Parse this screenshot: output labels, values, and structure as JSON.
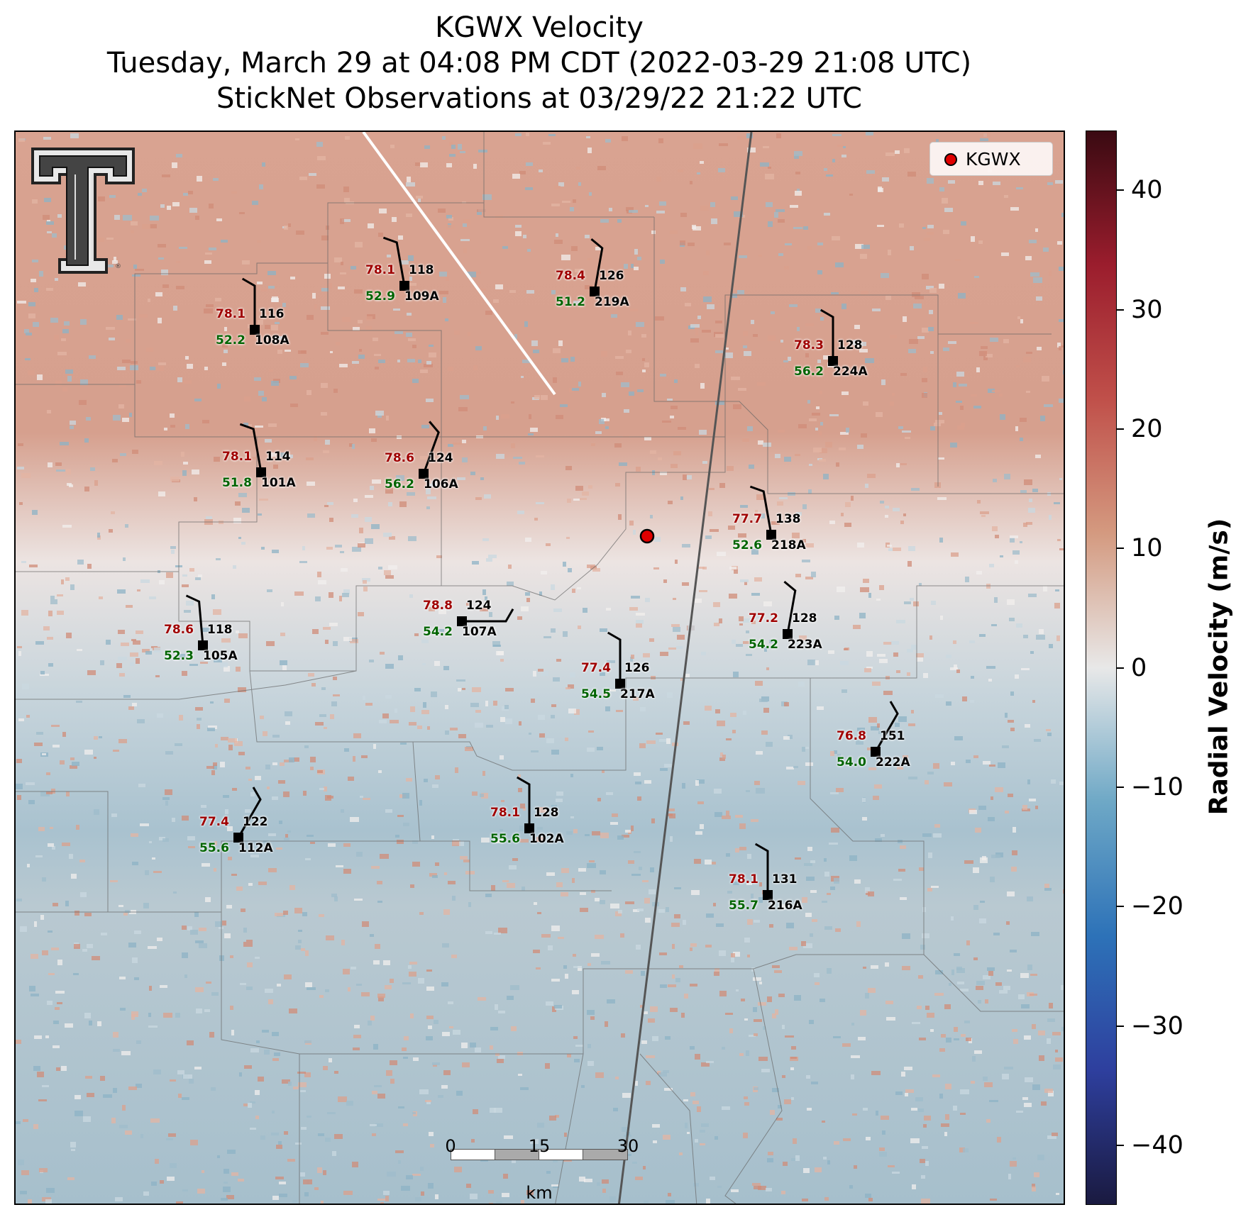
{
  "title": {
    "line1": "KGWX Velocity",
    "line2": "Tuesday, March 29 at 04:08 PM CDT (2022-03-29 21:08 UTC)",
    "line3": "StickNet Observations at 03/29/22 21:22 UTC"
  },
  "legend": {
    "label": "KGWX",
    "marker_color": "#e00000"
  },
  "colorbar": {
    "label": "Radial Velocity (m/s)",
    "range": [
      -45,
      45
    ],
    "ticks": [
      "40",
      "30",
      "20",
      "10",
      "0",
      "−10",
      "−20",
      "−30",
      "−40"
    ],
    "colors": [
      "#1a1a40",
      "#2e3f9e",
      "#2d72b8",
      "#6ea8c6",
      "#e8e8e8",
      "#d49a80",
      "#c0504a",
      "#9b1d2d",
      "#3a0a12"
    ]
  },
  "scalebar": {
    "ticks": [
      "0",
      "15",
      "30"
    ],
    "unit": "km"
  },
  "stations": [
    {
      "id": "109A",
      "temp": "78.1",
      "dew": "52.9",
      "pres": "118"
    },
    {
      "id": "219A",
      "temp": "78.4",
      "dew": "51.2",
      "pres": "126"
    },
    {
      "id": "108A",
      "temp": "78.1",
      "dew": "52.2",
      "pres": "116"
    },
    {
      "id": "224A",
      "temp": "78.3",
      "dew": "56.2",
      "pres": "128"
    },
    {
      "id": "101A",
      "temp": "78.1",
      "dew": "51.8",
      "pres": "114"
    },
    {
      "id": "106A",
      "temp": "78.6",
      "dew": "56.2",
      "pres": "124"
    },
    {
      "id": "218A",
      "temp": "77.7",
      "dew": "52.6",
      "pres": "138"
    },
    {
      "id": "107A",
      "temp": "78.8",
      "dew": "54.2",
      "pres": "124"
    },
    {
      "id": "223A",
      "temp": "77.2",
      "dew": "54.2",
      "pres": "128"
    },
    {
      "id": "105A",
      "temp": "78.6",
      "dew": "52.3",
      "pres": "118"
    },
    {
      "id": "217A",
      "temp": "77.4",
      "dew": "54.5",
      "pres": "126"
    },
    {
      "id": "222A",
      "temp": "76.8",
      "dew": "54.0",
      "pres": "151"
    },
    {
      "id": "102A",
      "temp": "78.1",
      "dew": "55.6",
      "pres": "128"
    },
    {
      "id": "112A",
      "temp": "77.4",
      "dew": "55.6",
      "pres": "122"
    },
    {
      "id": "216A",
      "temp": "78.1",
      "dew": "55.7",
      "pres": "131"
    }
  ]
}
